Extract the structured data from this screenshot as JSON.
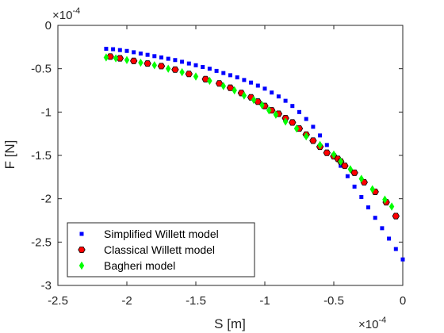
{
  "chart_data": {
    "type": "scatter",
    "xlabel": "S [m]",
    "ylabel": "F [N]",
    "x_multiplier": "×10",
    "x_exponent": "-4",
    "y_multiplier": "×10",
    "y_exponent": "-4",
    "xlim": [
      -2.5,
      0
    ],
    "ylim": [
      -3,
      0
    ],
    "xticks": [
      "-2.5",
      "-2",
      "-1.5",
      "-1",
      "-0.5",
      "0"
    ],
    "yticks": [
      "0",
      "-0.5",
      "-1",
      "-1.5",
      "-2",
      "-2.5",
      "-3"
    ],
    "grid": false,
    "legend_position": "bottom-left",
    "series": [
      {
        "name": "Simplified Willett model",
        "marker": "square",
        "color": "#0000FF",
        "x": [
          -2.15,
          -2.1,
          -2.05,
          -2.0,
          -1.95,
          -1.9,
          -1.85,
          -1.8,
          -1.75,
          -1.7,
          -1.65,
          -1.6,
          -1.55,
          -1.5,
          -1.45,
          -1.4,
          -1.35,
          -1.3,
          -1.25,
          -1.2,
          -1.15,
          -1.1,
          -1.05,
          -1.0,
          -0.95,
          -0.9,
          -0.85,
          -0.8,
          -0.75,
          -0.7,
          -0.65,
          -0.6,
          -0.55,
          -0.5,
          -0.45,
          -0.4,
          -0.35,
          -0.3,
          -0.25,
          -0.2,
          -0.15,
          -0.1,
          -0.05,
          0.0
        ],
        "y": [
          -0.27,
          -0.275,
          -0.285,
          -0.295,
          -0.31,
          -0.325,
          -0.34,
          -0.355,
          -0.37,
          -0.385,
          -0.4,
          -0.42,
          -0.44,
          -0.46,
          -0.48,
          -0.5,
          -0.525,
          -0.55,
          -0.575,
          -0.6,
          -0.63,
          -0.66,
          -0.695,
          -0.73,
          -0.775,
          -0.82,
          -0.87,
          -0.93,
          -1.0,
          -1.08,
          -1.17,
          -1.27,
          -1.38,
          -1.5,
          -1.62,
          -1.74,
          -1.86,
          -1.98,
          -2.1,
          -2.22,
          -2.34,
          -2.46,
          -2.58,
          -2.7
        ]
      },
      {
        "name": "Classical Willett model",
        "marker": "hexagon",
        "color": "#FF0000",
        "x": [
          -2.12,
          -2.05,
          -1.95,
          -1.85,
          -1.75,
          -1.65,
          -1.55,
          -1.43,
          -1.33,
          -1.25,
          -1.17,
          -1.1,
          -1.05,
          -1.0,
          -0.95,
          -0.9,
          -0.85,
          -0.8,
          -0.75,
          -0.7,
          -0.65,
          -0.6,
          -0.55,
          -0.5,
          -0.47,
          -0.45,
          -0.42,
          -0.35,
          -0.28,
          -0.2,
          -0.12,
          -0.05
        ],
        "y": [
          -0.36,
          -0.38,
          -0.41,
          -0.44,
          -0.47,
          -0.51,
          -0.56,
          -0.62,
          -0.67,
          -0.72,
          -0.78,
          -0.83,
          -0.88,
          -0.93,
          -0.98,
          -1.02,
          -1.07,
          -1.12,
          -1.19,
          -1.26,
          -1.33,
          -1.4,
          -1.47,
          -1.51,
          -1.54,
          -1.57,
          -1.62,
          -1.7,
          -1.81,
          -1.92,
          -2.04,
          -2.2
        ]
      },
      {
        "name": "Bagheri model",
        "marker": "diamond",
        "color": "#00FF00",
        "x": [
          -2.15,
          -2.08,
          -2.0,
          -1.9,
          -1.8,
          -1.7,
          -1.6,
          -1.5,
          -1.4,
          -1.3,
          -1.22,
          -1.15,
          -1.08,
          -1.02,
          -0.97,
          -0.92,
          -0.85,
          -0.77,
          -0.7,
          -0.6,
          -0.5,
          -0.45,
          -0.38,
          -0.3,
          -0.22,
          -0.13,
          -0.08
        ],
        "y": [
          -0.37,
          -0.38,
          -0.4,
          -0.43,
          -0.46,
          -0.5,
          -0.54,
          -0.59,
          -0.64,
          -0.7,
          -0.75,
          -0.81,
          -0.86,
          -0.92,
          -0.98,
          -1.03,
          -1.11,
          -1.19,
          -1.28,
          -1.38,
          -1.49,
          -1.57,
          -1.66,
          -1.77,
          -1.89,
          -2.01,
          -2.09
        ]
      }
    ]
  }
}
